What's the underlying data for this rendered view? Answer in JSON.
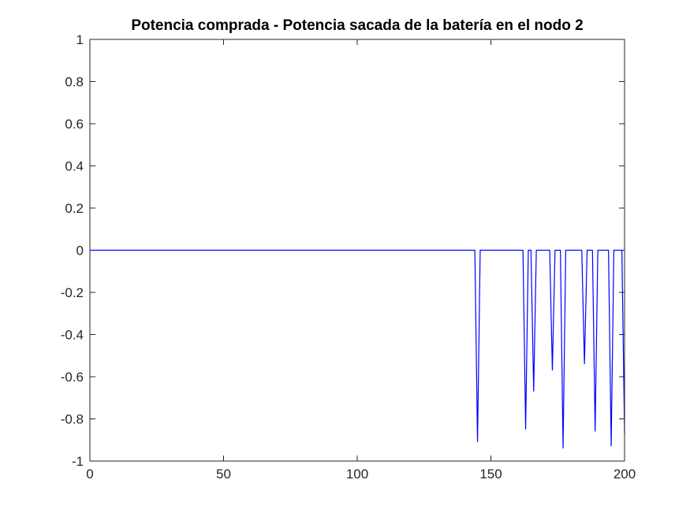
{
  "chart_data": {
    "type": "line",
    "title": "Potencia comprada - Potencia sacada de la batería en el nodo 2",
    "xlabel": "",
    "ylabel": "",
    "xlim": [
      0,
      200
    ],
    "ylim": [
      -1,
      1
    ],
    "xticks": [
      0,
      50,
      100,
      150,
      200
    ],
    "xtick_labels": [
      "0",
      "50",
      "100",
      "150",
      "200"
    ],
    "yticks": [
      -1,
      -0.8,
      -0.6,
      -0.4,
      -0.2,
      0,
      0.2,
      0.4,
      0.6,
      0.8,
      1
    ],
    "ytick_labels": [
      "-1",
      "-0.8",
      "-0.6",
      "-0.4",
      "-0.2",
      "0",
      "0.2",
      "0.4",
      "0.6",
      "0.8",
      "1"
    ],
    "grid": false,
    "series": [
      {
        "color": "#0000ff",
        "x": [
          0,
          144,
          145,
          146,
          162,
          163,
          164,
          165,
          166,
          167,
          172,
          173,
          174,
          176,
          177,
          178,
          184,
          185,
          186,
          188,
          189,
          190,
          194,
          195,
          196,
          199,
          200
        ],
        "y": [
          0,
          0,
          -0.91,
          0,
          0,
          -0.85,
          0,
          0,
          -0.67,
          0,
          0,
          -0.57,
          0,
          0,
          -0.94,
          0,
          0,
          -0.54,
          0,
          0,
          -0.86,
          0,
          0,
          -0.93,
          0,
          0,
          -0.87
        ]
      }
    ]
  }
}
